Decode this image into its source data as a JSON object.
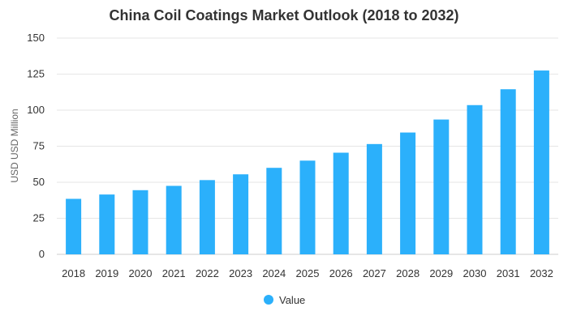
{
  "chart_data": {
    "type": "bar",
    "title": "China Coil Coatings Market Outlook (2018 to 2032)",
    "xlabel": "",
    "ylabel": "USD USD Million",
    "categories": [
      "2018",
      "2019",
      "2020",
      "2021",
      "2022",
      "2023",
      "2024",
      "2025",
      "2026",
      "2027",
      "2028",
      "2029",
      "2030",
      "2031",
      "2032"
    ],
    "series": [
      {
        "name": "Value",
        "color": "#2bb0fb",
        "values": [
          38.5,
          41.5,
          44.5,
          47.5,
          51.5,
          55.5,
          60,
          65,
          70.5,
          76.5,
          84.5,
          93.5,
          103.5,
          114.5,
          127.5
        ]
      }
    ],
    "yticks": [
      "0",
      "25",
      "50",
      "75",
      "100",
      "125",
      "150"
    ],
    "ylim": [
      0,
      150
    ],
    "grid": true,
    "legend_position": "bottom"
  }
}
